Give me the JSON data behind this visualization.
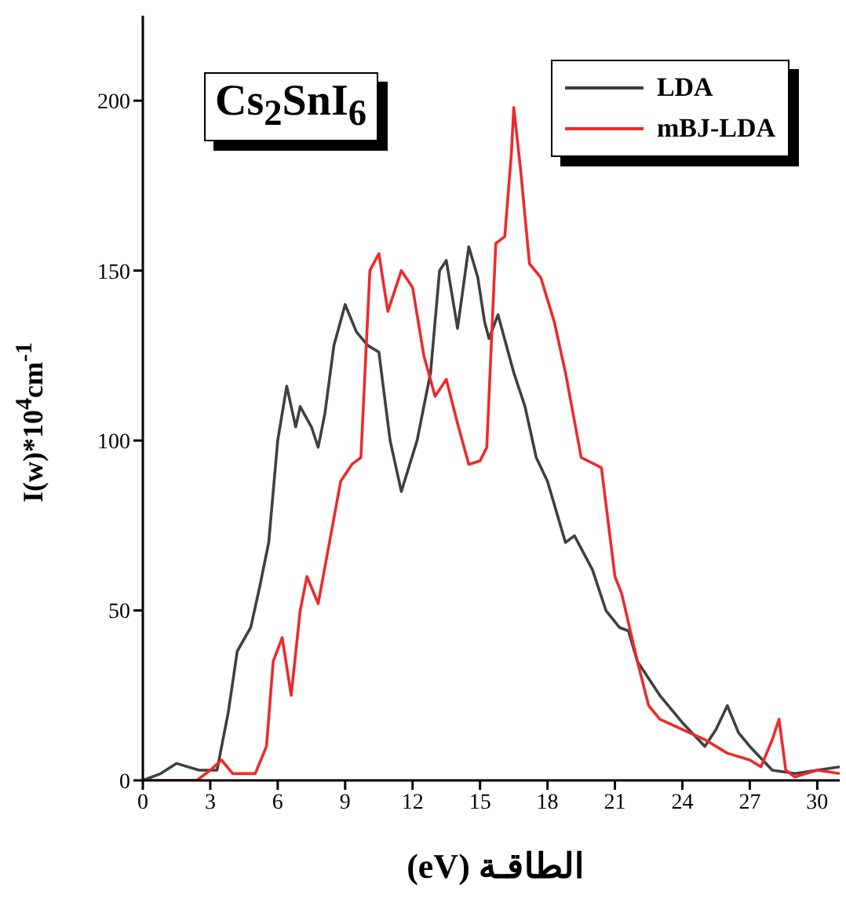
{
  "chart_data": {
    "type": "line",
    "title": "Cs$_{2}$SnI$_{6}$",
    "xlabel": "الطاقـة (eV)",
    "ylabel": "I(w)*10$^{4}$cm$^{-1}$",
    "xlim": [
      0,
      31
    ],
    "xticks": [
      0,
      3,
      6,
      9,
      12,
      15,
      18,
      21,
      24,
      27,
      30
    ],
    "ylim": [
      0,
      225
    ],
    "yticks": [
      0,
      50,
      100,
      150,
      200
    ],
    "legend": "top right",
    "grid": false,
    "marker": "none",
    "line_style": "solid",
    "series": [
      {
        "name": "LDA",
        "color": "#404040",
        "x": [
          0,
          0.8,
          1.5,
          2.5,
          3.3,
          3.8,
          4.2,
          4.8,
          5.2,
          5.6,
          6.0,
          6.4,
          6.8,
          7.0,
          7.5,
          7.8,
          8.1,
          8.5,
          9.0,
          9.5,
          10.0,
          10.5,
          11.0,
          11.5,
          12.2,
          12.8,
          13.2,
          13.5,
          14.0,
          14.5,
          14.9,
          15.2,
          15.4,
          15.8,
          16.5,
          17.0,
          17.5,
          18.0,
          18.8,
          19.2,
          20.0,
          20.6,
          21.2,
          21.6,
          22.0,
          23.0,
          24.0,
          25.0,
          25.5,
          26.0,
          26.5,
          27.0,
          28.0,
          29.0,
          30.0,
          31.0
        ],
        "values": [
          0,
          2,
          5,
          3,
          3,
          20,
          38,
          45,
          57,
          70,
          100,
          116,
          104,
          110,
          104,
          98,
          108,
          128,
          140,
          132,
          128,
          126,
          100,
          85,
          100,
          120,
          150,
          153,
          133,
          157,
          148,
          135,
          130,
          137,
          120,
          110,
          95,
          88,
          70,
          72,
          62,
          50,
          45,
          44,
          35,
          25,
          17,
          10,
          15,
          22,
          14,
          10,
          3,
          2,
          3,
          4
        ]
      },
      {
        "name": "mBJ-LDA",
        "color": "#ee2a2a",
        "x": [
          0,
          2.4,
          3.0,
          3.5,
          4.0,
          5.0,
          5.5,
          5.8,
          6.2,
          6.6,
          7.0,
          7.3,
          7.8,
          8.3,
          8.8,
          9.3,
          9.7,
          10.1,
          10.5,
          10.9,
          11.5,
          12.0,
          12.5,
          13.0,
          13.5,
          14.0,
          14.5,
          15.0,
          15.3,
          15.7,
          16.1,
          16.4,
          16.5,
          16.8,
          17.2,
          17.7,
          18.3,
          18.8,
          19.5,
          20.4,
          21.0,
          21.3,
          22.0,
          22.5,
          23.0,
          24.0,
          25.0,
          26.0,
          27.0,
          27.5,
          28.0,
          28.3,
          28.6,
          29.0,
          30.0,
          31.0
        ],
        "values": [
          0,
          0,
          3,
          6,
          2,
          2,
          10,
          35,
          42,
          25,
          50,
          60,
          52,
          70,
          88,
          93,
          95,
          150,
          155,
          138,
          150,
          145,
          125,
          113,
          118,
          105,
          93,
          94,
          98,
          158,
          160,
          185,
          198,
          180,
          152,
          148,
          135,
          120,
          95,
          92,
          60,
          55,
          35,
          22,
          18,
          15,
          12,
          8,
          6,
          4,
          12,
          18,
          3,
          1,
          3,
          2
        ]
      }
    ]
  }
}
